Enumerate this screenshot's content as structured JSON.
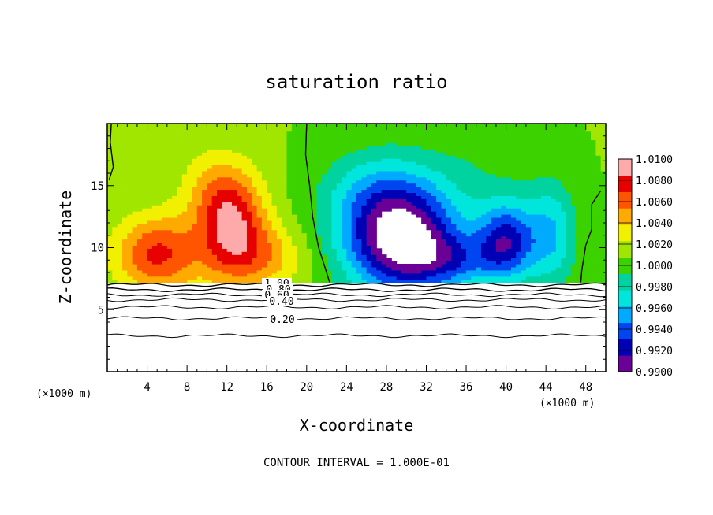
{
  "chart_data": {
    "type": "heatmap",
    "title": "saturation ratio",
    "xlabel": "X-coordinate",
    "ylabel": "Z-coordinate",
    "x_unit": "(×1000 m)",
    "z_unit": "(×1000 m)",
    "xlim": [
      0,
      50
    ],
    "ylim": [
      0,
      20
    ],
    "x_ticks": [
      4,
      8,
      12,
      16,
      20,
      24,
      28,
      32,
      36,
      40,
      44,
      48
    ],
    "y_ticks": [
      5,
      10,
      15
    ],
    "colorbar": {
      "values": [
        0.99,
        0.992,
        0.994,
        0.996,
        0.998,
        1.0,
        1.002,
        1.004,
        1.006,
        1.008,
        1.01
      ],
      "labels": [
        "0.9900",
        "0.9920",
        "0.9940",
        "0.9960",
        "0.9980",
        "1.0000",
        "1.0020",
        "1.0040",
        "1.0060",
        "1.0080",
        "1.0100"
      ],
      "colors": [
        "#6a0096",
        "#0000b4",
        "#0046f0",
        "#00aaff",
        "#00e6dc",
        "#00d2a0",
        "#3cd200",
        "#a0e600",
        "#f0f000",
        "#ffaa00",
        "#ff5500",
        "#e60000",
        "#ffaaaa"
      ]
    },
    "fill_top_level": 0.9995,
    "surface_height": 7.2,
    "contour_lines": {
      "levels": [
        1.0,
        0.8,
        0.6,
        0.4,
        0.2
      ],
      "labels": [
        "1.00",
        "0.80",
        "0.60",
        "0.40",
        "0.20"
      ],
      "base_heights": [
        7.0,
        6.6,
        6.2,
        5.8,
        5.2,
        4.3,
        2.9
      ]
    },
    "contour_interval": "CONTOUR INTERVAL = 1.000E-01"
  }
}
